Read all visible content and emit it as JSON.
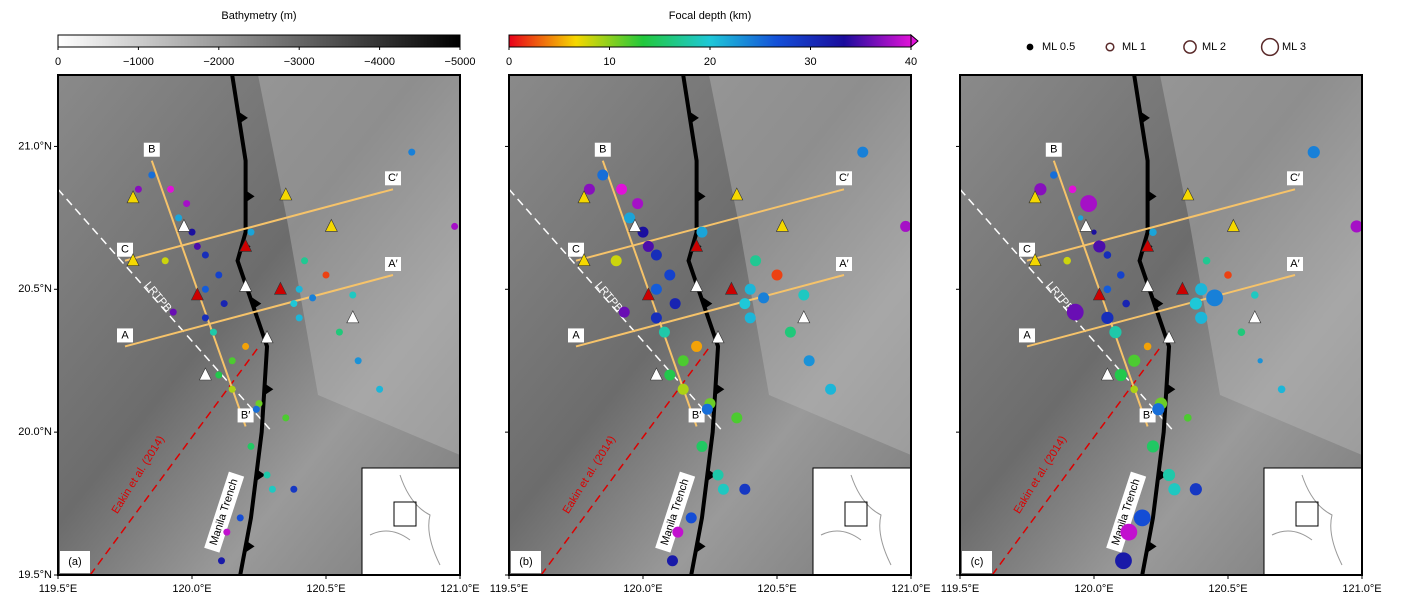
{
  "bathymetry_colorbar": {
    "title": "Bathymetry (m)",
    "lim": [
      0,
      -5000
    ],
    "ticks": [
      0,
      {
        "value": -1000,
        "label": "−1000"
      },
      {
        "value": -2000,
        "label": "−2000"
      },
      {
        "value": -3000,
        "label": "−3000"
      },
      {
        "value": -4000,
        "label": "−4000"
      },
      {
        "value": -5000,
        "label": "−5000"
      }
    ],
    "colors": [
      "#ffffff",
      "#000000"
    ]
  },
  "depth_colorbar": {
    "title": "Focal depth (km)",
    "lim": [
      0,
      40
    ],
    "ticks": [
      0,
      10,
      20,
      30,
      40
    ],
    "colors": [
      "#e8001a",
      "#f6d800",
      "#22c83c",
      "#1ec8d8",
      "#1450d8",
      "#1a0c9c",
      "#e012d8"
    ]
  },
  "magnitude_legend": {
    "items": [
      {
        "label": "ML 0.5",
        "value": 0.5
      },
      {
        "label": "ML 1",
        "value": 1
      },
      {
        "label": "ML 2",
        "value": 2
      },
      {
        "label": "ML 3",
        "value": 3
      }
    ]
  },
  "map": {
    "xlim": [
      119.5,
      121.0
    ],
    "ylim": [
      19.5,
      21.25
    ],
    "xticks": [
      {
        "value": 119.5,
        "label": "119.5°E"
      },
      {
        "value": 120.0,
        "label": "120.0°E"
      },
      {
        "value": 120.5,
        "label": "120.5°E"
      },
      {
        "value": 121.0,
        "label": "121.0°E"
      }
    ],
    "yticks": [
      {
        "value": 19.5,
        "label": "19.5°N"
      },
      {
        "value": 20.0,
        "label": "20.0°N"
      },
      {
        "value": 20.5,
        "label": "20.5°N"
      },
      {
        "value": 21.0,
        "label": "21.0°N"
      }
    ],
    "panels": [
      "(a)",
      "(b)",
      "(c)"
    ],
    "profiles": [
      {
        "start": "A",
        "end": "A′"
      },
      {
        "start": "B",
        "end": "B′"
      },
      {
        "start": "C",
        "end": "C′"
      }
    ],
    "boundary_label": "LRTPB",
    "trench_label": "Manila Trench",
    "reference_label": "Eakin et al. (2014)"
  },
  "events": {
    "lon": [
      120.05,
      120.1,
      120.02,
      119.95,
      120.08,
      120.12,
      119.9,
      119.98,
      120.15,
      120.05,
      120.0,
      119.92,
      120.2,
      120.4,
      120.45,
      120.38,
      120.5,
      120.42,
      120.1,
      120.15,
      120.22,
      120.25,
      120.18,
      120.3,
      119.85,
      119.8,
      120.55,
      120.62,
      120.7,
      120.35,
      120.13,
      120.24,
      120.28,
      120.38,
      120.11,
      120.22,
      120.82,
      120.98,
      119.93,
      120.4,
      120.05,
      120.6
    ],
    "lat": [
      20.4,
      20.55,
      20.65,
      20.75,
      20.35,
      20.45,
      20.6,
      20.8,
      20.25,
      20.5,
      20.7,
      20.85,
      20.3,
      20.5,
      20.47,
      20.45,
      20.55,
      20.6,
      20.2,
      20.15,
      19.95,
      20.1,
      19.7,
      19.8,
      20.9,
      20.85,
      20.35,
      20.25,
      20.15,
      20.05,
      19.65,
      20.08,
      19.85,
      19.8,
      19.55,
      20.7,
      20.98,
      20.72,
      20.42,
      20.4,
      20.62,
      20.48
    ],
    "depth": [
      30,
      28,
      35,
      22,
      18,
      31,
      8,
      38,
      12,
      26,
      33,
      40,
      5,
      21,
      24,
      20,
      2,
      17,
      14,
      9,
      15,
      11,
      27,
      19,
      25,
      37,
      16,
      23,
      21,
      12,
      39,
      25,
      18,
      29,
      32,
      22,
      24,
      38,
      36,
      21,
      30,
      19
    ],
    "ml": [
      2,
      1,
      2,
      0.5,
      2,
      1,
      1,
      3,
      2,
      1,
      0.5,
      1,
      1,
      2,
      3,
      2,
      1,
      1,
      2,
      1,
      2,
      2,
      3,
      2,
      1,
      2,
      1,
      0.5,
      1,
      1,
      3,
      2,
      2,
      2,
      3,
      1,
      2,
      2,
      3,
      2,
      1,
      1
    ]
  }
}
